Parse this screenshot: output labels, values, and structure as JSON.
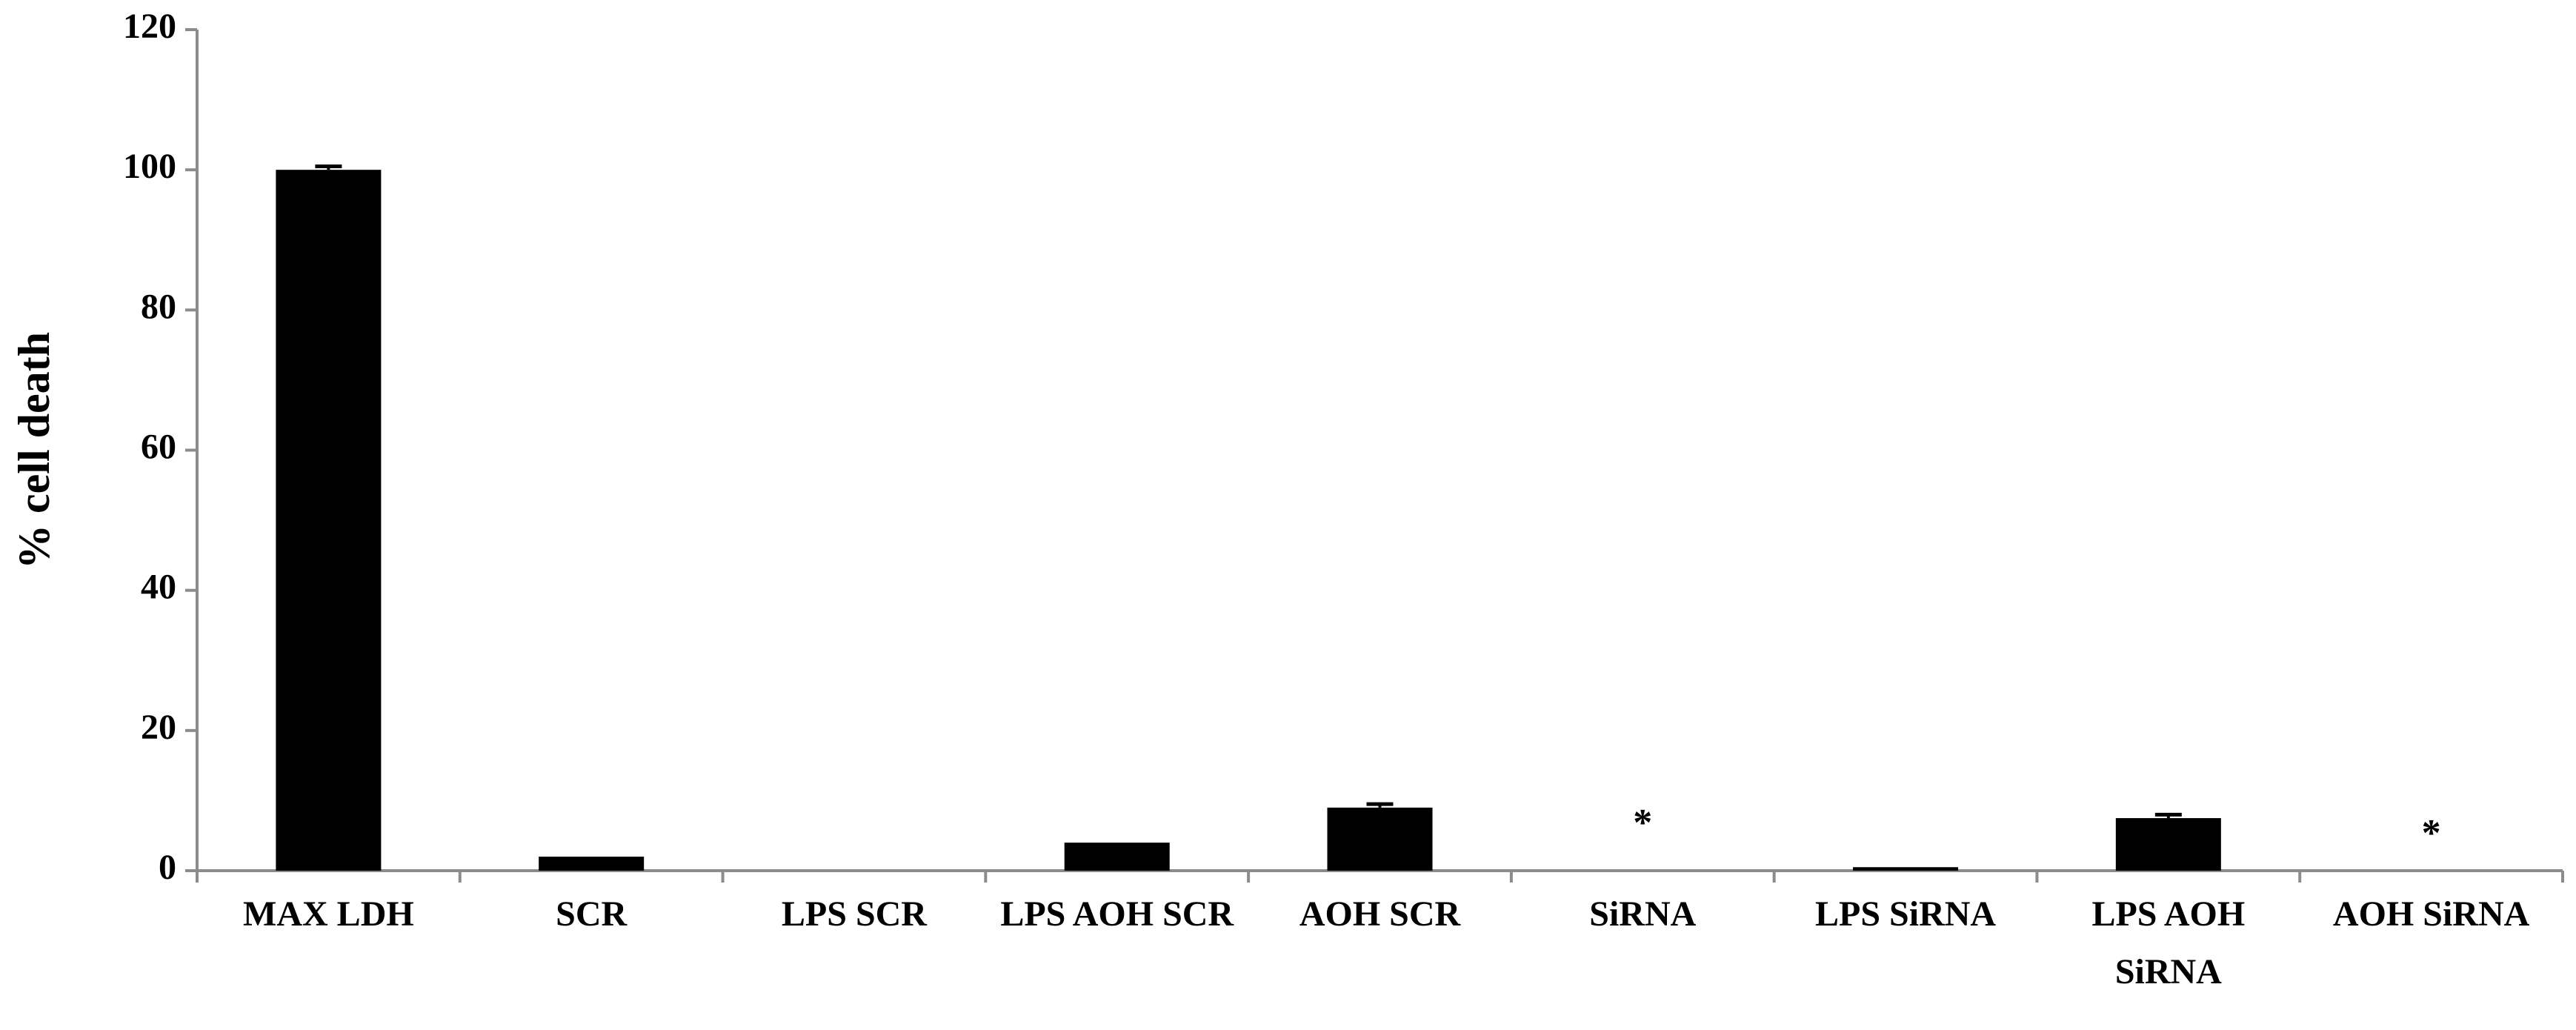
{
  "chart_data": {
    "type": "bar",
    "y_label": "% cell death",
    "categories": [
      "MAX LDH",
      "SCR",
      "LPS SCR",
      "LPS AOH SCR",
      "AOH SCR",
      "SiRNA",
      "LPS SiRNA",
      "LPS AOH SiRNA",
      "AOH SiRNA"
    ],
    "values": [
      100,
      2,
      0,
      4,
      9,
      0,
      0.5,
      7.5,
      0
    ],
    "errors": [
      0.5,
      0,
      0,
      0,
      0.5,
      0,
      0,
      0.5,
      0
    ],
    "color": "#000000",
    "ylim": [
      0,
      120
    ],
    "yticks": [
      0,
      20,
      40,
      60,
      80,
      100,
      120
    ],
    "grid": false,
    "annotations": [
      {
        "text": "*",
        "category": "SiRNA"
      },
      {
        "text": "*",
        "category": "AOH SiRNA"
      }
    ]
  }
}
